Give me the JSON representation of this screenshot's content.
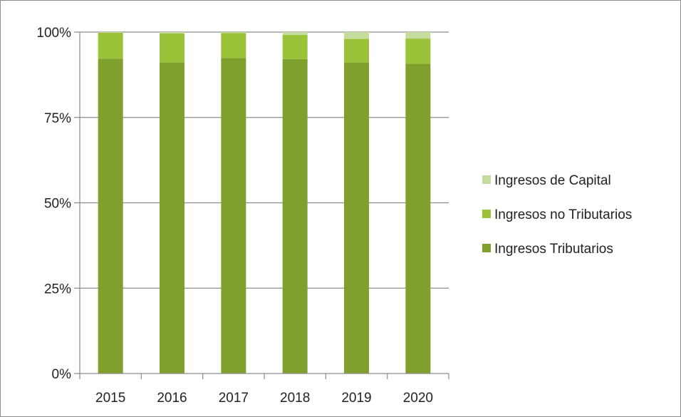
{
  "chart_data": {
    "type": "bar",
    "stacked": true,
    "percent": true,
    "categories": [
      "2015",
      "2016",
      "2017",
      "2018",
      "2019",
      "2020"
    ],
    "series": [
      {
        "name": "Ingresos Tributarios",
        "color": "#7fa02d",
        "values": [
          92.2,
          91.1,
          92.4,
          92.1,
          91.1,
          90.7
        ]
      },
      {
        "name": "Ingresos no Tributarios",
        "color": "#9bc33a",
        "values": [
          7.6,
          8.5,
          7.3,
          7.1,
          6.9,
          7.4
        ]
      },
      {
        "name": "Ingresos de Capital",
        "color": "#c5dc9f",
        "values": [
          0.2,
          0.4,
          0.3,
          0.8,
          2.0,
          1.9
        ]
      }
    ],
    "ylim": [
      0,
      100
    ],
    "yticks": [
      "0%",
      "25%",
      "50%",
      "75%",
      "100%"
    ],
    "legend_order": [
      "Ingresos de Capital",
      "Ingresos no Tributarios",
      "Ingresos Tributarios"
    ],
    "legend_position": "right",
    "grid": true
  }
}
